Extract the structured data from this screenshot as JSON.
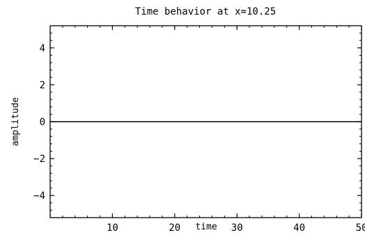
{
  "chart_data": {
    "type": "line",
    "title": "Time behavior at x=10.25",
    "xlabel": "time",
    "ylabel": "amplitude",
    "xlim": [
      0,
      50
    ],
    "ylim": [
      -5.2,
      5.2
    ],
    "x_ticks": [
      10,
      20,
      30,
      40,
      50
    ],
    "x_tick_labels": [
      "10",
      "20",
      "30",
      "40",
      "50"
    ],
    "x_minor_step": 2,
    "y_ticks": [
      4,
      2,
      0,
      -2,
      -4
    ],
    "y_tick_labels": [
      "4",
      "2",
      "0",
      "−2",
      "−4"
    ],
    "y_minor_step": 0.4,
    "grid": false,
    "series": [
      {
        "x": [
          0,
          50
        ],
        "y": [
          0,
          0
        ],
        "color": "#000000"
      }
    ]
  }
}
